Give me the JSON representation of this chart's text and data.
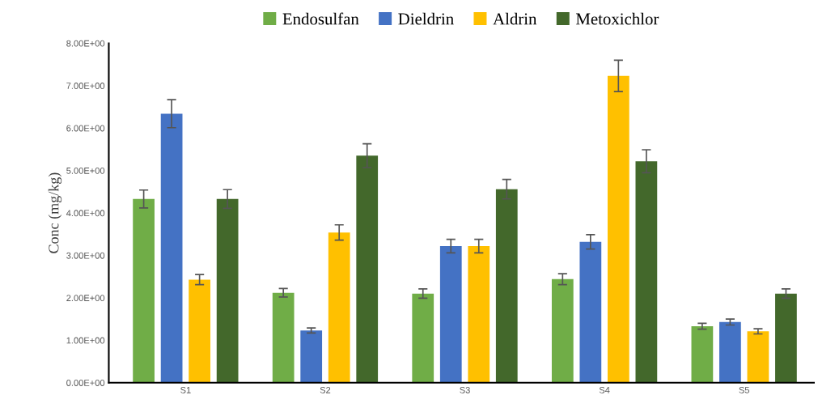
{
  "chart_data": {
    "type": "bar",
    "ylabel": "Conc (mg/kg)",
    "categories": [
      "S1",
      "S2",
      "S3",
      "S4",
      "S5"
    ],
    "series": [
      {
        "name": "Endosulfan",
        "color": "#70ad47",
        "values": [
          4.33,
          2.12,
          2.1,
          2.44,
          1.33
        ],
        "errors": [
          0.21,
          0.1,
          0.11,
          0.13,
          0.07
        ]
      },
      {
        "name": "Dieldrin",
        "color": "#4472c4",
        "values": [
          6.34,
          1.23,
          3.22,
          3.32,
          1.43
        ],
        "errors": [
          0.33,
          0.06,
          0.16,
          0.17,
          0.07
        ]
      },
      {
        "name": "Aldrin",
        "color": "#ffc000",
        "values": [
          2.43,
          3.54,
          3.22,
          7.23,
          1.21
        ],
        "errors": [
          0.12,
          0.18,
          0.16,
          0.37,
          0.06
        ]
      },
      {
        "name": "Metoxichlor",
        "color": "#43682b",
        "values": [
          4.33,
          5.35,
          4.56,
          5.22,
          2.1
        ],
        "errors": [
          0.22,
          0.28,
          0.23,
          0.27,
          0.11
        ]
      }
    ],
    "ylim": [
      0,
      8
    ],
    "yticks": [
      {
        "value": 0,
        "label": "0.00E+00"
      },
      {
        "value": 1,
        "label": "1.00E+00"
      },
      {
        "value": 2,
        "label": "2.00E+00"
      },
      {
        "value": 3,
        "label": "3.00E+00"
      },
      {
        "value": 4,
        "label": "4.00E+00"
      },
      {
        "value": 5,
        "label": "5.00E+00"
      },
      {
        "value": 6,
        "label": "6.00E+00"
      },
      {
        "value": 7,
        "label": "7.00E+00"
      },
      {
        "value": 8,
        "label": "8.00E+00"
      }
    ],
    "grid": false,
    "legend": "top"
  }
}
